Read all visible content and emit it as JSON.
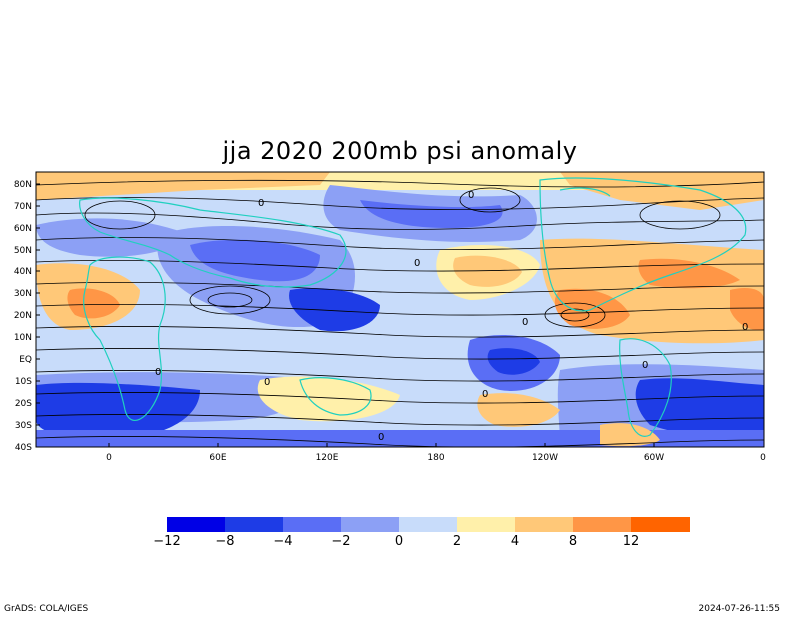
{
  "title": "jja 2020 200mb psi anomaly",
  "map": {
    "lat_labels": [
      "80N",
      "70N",
      "60N",
      "50N",
      "40N",
      "30N",
      "20N",
      "10N",
      "EQ",
      "10S",
      "20S",
      "30S",
      "40S"
    ],
    "lon_labels": [
      "0",
      "60E",
      "120E",
      "180",
      "120W",
      "60W",
      "0"
    ],
    "contour_labels": [
      "0",
      "0",
      "0",
      "0",
      "0",
      "0",
      "0",
      "0",
      "0",
      "0"
    ],
    "colors": {
      "land": "#20d0c0",
      "streamline": "#000000"
    }
  },
  "colorbar": {
    "labels": [
      "−12",
      "−8",
      "−4",
      "−2",
      "0",
      "2",
      "4",
      "8",
      "12"
    ],
    "colors": [
      "#0000e6",
      "#1e3ce6",
      "#5a6ef5",
      "#8ca0f5",
      "#c8dcfa",
      "#fff0aa",
      "#ffc878",
      "#ff9646",
      "#ff6400"
    ]
  },
  "footer": {
    "left": "GrADS: COLA/IGES",
    "right": "2024-07-26-11:55"
  }
}
